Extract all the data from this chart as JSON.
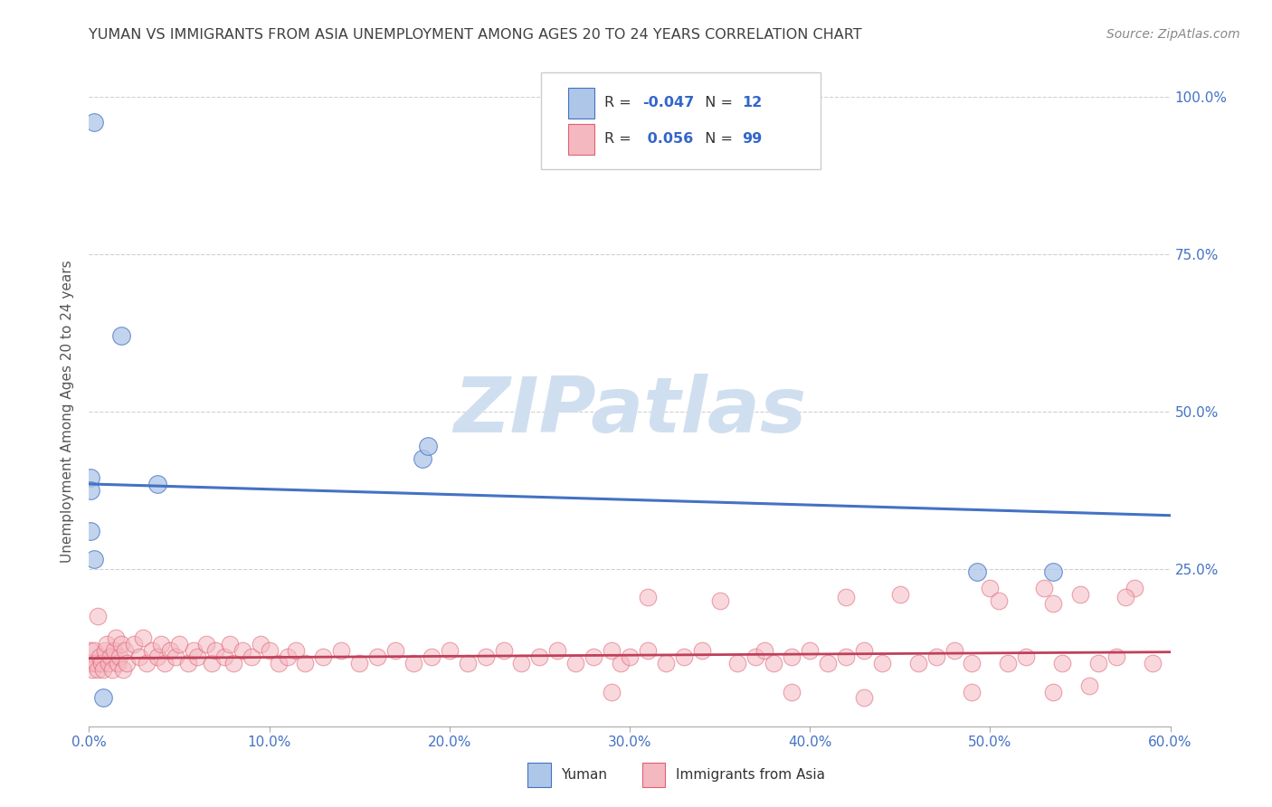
{
  "title": "YUMAN VS IMMIGRANTS FROM ASIA UNEMPLOYMENT AMONG AGES 20 TO 24 YEARS CORRELATION CHART",
  "source": "Source: ZipAtlas.com",
  "ylabel": "Unemployment Among Ages 20 to 24 years",
  "xlim": [
    0.0,
    0.6
  ],
  "ylim": [
    0.0,
    1.0
  ],
  "xlabel_ticks": [
    "0.0%",
    "10.0%",
    "20.0%",
    "30.0%",
    "40.0%",
    "50.0%",
    "60.0%"
  ],
  "xlabel_vals": [
    0.0,
    0.1,
    0.2,
    0.3,
    0.4,
    0.5,
    0.6
  ],
  "ylabel_ticks_right": [
    "100.0%",
    "75.0%",
    "50.0%",
    "25.0%"
  ],
  "ylabel_vals_right": [
    1.0,
    0.75,
    0.5,
    0.25
  ],
  "blue_color": "#aec6e8",
  "blue_edge_color": "#4472c4",
  "pink_color": "#f4b8c1",
  "pink_edge_color": "#e06070",
  "blue_line_color": "#4472c4",
  "pink_line_color": "#c0405a",
  "watermark_color": "#d0dff0",
  "grid_color": "#d0d0d0",
  "background_color": "#ffffff",
  "title_color": "#404040",
  "source_color": "#888888",
  "tick_color": "#4472c4",
  "ylabel_color": "#555555",
  "blue_scatter_x": [
    0.003,
    0.018,
    0.001,
    0.001,
    0.001,
    0.003,
    0.008,
    0.185,
    0.188,
    0.493,
    0.535,
    0.038
  ],
  "blue_scatter_y": [
    0.96,
    0.62,
    0.395,
    0.375,
    0.31,
    0.265,
    0.045,
    0.425,
    0.445,
    0.245,
    0.245,
    0.385
  ],
  "blue_trend_x": [
    0.0,
    0.6
  ],
  "blue_trend_y": [
    0.385,
    0.335
  ],
  "pink_scatter_x": [
    0.001,
    0.001,
    0.002,
    0.003,
    0.004,
    0.005,
    0.006,
    0.007,
    0.008,
    0.009,
    0.01,
    0.011,
    0.012,
    0.013,
    0.014,
    0.015,
    0.016,
    0.017,
    0.018,
    0.019,
    0.02,
    0.021,
    0.025,
    0.028,
    0.03,
    0.032,
    0.035,
    0.038,
    0.04,
    0.042,
    0.045,
    0.048,
    0.05,
    0.055,
    0.058,
    0.06,
    0.065,
    0.068,
    0.07,
    0.075,
    0.078,
    0.08,
    0.085,
    0.09,
    0.095,
    0.1,
    0.105,
    0.11,
    0.115,
    0.12,
    0.13,
    0.14,
    0.15,
    0.16,
    0.17,
    0.18,
    0.19,
    0.2,
    0.21,
    0.22,
    0.23,
    0.24,
    0.25,
    0.26,
    0.27,
    0.28,
    0.29,
    0.295,
    0.3,
    0.31,
    0.32,
    0.33,
    0.34,
    0.35,
    0.36,
    0.37,
    0.375,
    0.38,
    0.39,
    0.4,
    0.41,
    0.42,
    0.43,
    0.44,
    0.45,
    0.46,
    0.47,
    0.48,
    0.49,
    0.5,
    0.51,
    0.52,
    0.53,
    0.54,
    0.55,
    0.56,
    0.57,
    0.58,
    0.59
  ],
  "pink_scatter_y": [
    0.12,
    0.1,
    0.09,
    0.12,
    0.1,
    0.09,
    0.11,
    0.1,
    0.09,
    0.12,
    0.13,
    0.1,
    0.11,
    0.09,
    0.12,
    0.14,
    0.1,
    0.11,
    0.13,
    0.09,
    0.12,
    0.1,
    0.13,
    0.11,
    0.14,
    0.1,
    0.12,
    0.11,
    0.13,
    0.1,
    0.12,
    0.11,
    0.13,
    0.1,
    0.12,
    0.11,
    0.13,
    0.1,
    0.12,
    0.11,
    0.13,
    0.1,
    0.12,
    0.11,
    0.13,
    0.12,
    0.1,
    0.11,
    0.12,
    0.1,
    0.11,
    0.12,
    0.1,
    0.11,
    0.12,
    0.1,
    0.11,
    0.12,
    0.1,
    0.11,
    0.12,
    0.1,
    0.11,
    0.12,
    0.1,
    0.11,
    0.12,
    0.1,
    0.11,
    0.12,
    0.1,
    0.11,
    0.12,
    0.2,
    0.1,
    0.11,
    0.12,
    0.1,
    0.11,
    0.12,
    0.1,
    0.11,
    0.12,
    0.1,
    0.21,
    0.1,
    0.11,
    0.12,
    0.1,
    0.22,
    0.1,
    0.11,
    0.22,
    0.1,
    0.21,
    0.1,
    0.11,
    0.22,
    0.1
  ],
  "pink_extra_high_x": [
    0.005,
    0.31,
    0.42,
    0.505,
    0.535,
    0.575
  ],
  "pink_extra_high_y": [
    0.175,
    0.205,
    0.205,
    0.2,
    0.195,
    0.205
  ],
  "pink_low_x": [
    0.29,
    0.39,
    0.43,
    0.49,
    0.535,
    0.555
  ],
  "pink_low_y": [
    0.055,
    0.055,
    0.045,
    0.055,
    0.055,
    0.065
  ],
  "pink_trend_x": [
    0.0,
    0.6
  ],
  "pink_trend_y": [
    0.108,
    0.118
  ],
  "legend_R_blue": "-0.047",
  "legend_N_blue": "12",
  "legend_R_pink": "0.056",
  "legend_N_pink": "99",
  "legend_blue_label": "Yuman",
  "legend_pink_label": "Immigrants from Asia",
  "watermark": "ZIPatlas"
}
